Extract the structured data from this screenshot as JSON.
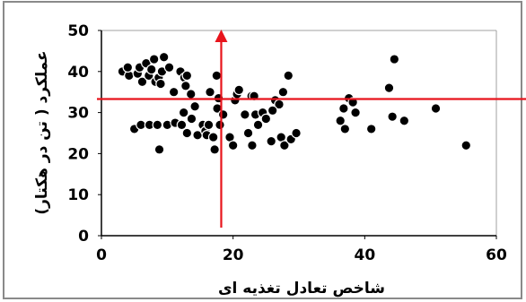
{
  "chart_data": {
    "type": "scatter",
    "xlabel": "شاخص تعادل تغذیه ای",
    "ylabel": "عملکرد ( تن در هکتار)",
    "xlim": [
      0,
      60
    ],
    "ylim": [
      0,
      50
    ],
    "xticks": [
      0,
      20,
      40,
      60
    ],
    "yticks": [
      0,
      10,
      20,
      30,
      40,
      50
    ],
    "grid": false,
    "point_color": "#000000",
    "reference_line_color": "#e8141c",
    "reference_lines": {
      "x": 18.2,
      "y": 33.3
    },
    "points": [
      [
        3.2,
        40.0
      ],
      [
        4.2,
        39.0
      ],
      [
        4.0,
        41.0
      ],
      [
        5.5,
        39.5
      ],
      [
        5.8,
        41.0
      ],
      [
        6.2,
        37.5
      ],
      [
        6.8,
        42.0
      ],
      [
        7.2,
        39.0
      ],
      [
        7.6,
        40.5
      ],
      [
        8.0,
        43.0
      ],
      [
        8.2,
        37.5
      ],
      [
        8.7,
        38.5
      ],
      [
        9.2,
        40.0
      ],
      [
        9.5,
        43.5
      ],
      [
        9.0,
        37.0
      ],
      [
        10.3,
        41.0
      ],
      [
        12.0,
        40.0
      ],
      [
        12.6,
        38.5
      ],
      [
        13.0,
        39.0
      ],
      [
        12.8,
        36.5
      ],
      [
        13.6,
        34.5
      ],
      [
        11.0,
        35.0
      ],
      [
        17.5,
        39.0
      ],
      [
        16.5,
        35.0
      ],
      [
        17.8,
        33.5
      ],
      [
        5.0,
        26.0
      ],
      [
        6.0,
        27.0
      ],
      [
        7.3,
        27.0
      ],
      [
        8.5,
        27.0
      ],
      [
        8.8,
        21.0
      ],
      [
        10.0,
        27.0
      ],
      [
        11.2,
        27.5
      ],
      [
        12.2,
        27.0
      ],
      [
        13.0,
        25.0
      ],
      [
        12.5,
        30.0
      ],
      [
        13.7,
        28.5
      ],
      [
        14.2,
        31.5
      ],
      [
        14.6,
        24.5
      ],
      [
        15.4,
        27.0
      ],
      [
        15.8,
        25.5
      ],
      [
        16.3,
        27.0
      ],
      [
        16.0,
        24.5
      ],
      [
        17.0,
        24.0
      ],
      [
        17.2,
        21.0
      ],
      [
        18.0,
        27.0
      ],
      [
        17.6,
        31.0
      ],
      [
        18.5,
        29.5
      ],
      [
        19.5,
        24.0
      ],
      [
        20.0,
        22.0
      ],
      [
        20.3,
        33.0
      ],
      [
        20.6,
        34.5
      ],
      [
        20.9,
        35.5
      ],
      [
        21.8,
        29.5
      ],
      [
        22.3,
        25.0
      ],
      [
        22.8,
        34.0
      ],
      [
        23.2,
        34.0
      ],
      [
        23.4,
        29.5
      ],
      [
        22.9,
        22.0
      ],
      [
        23.8,
        27.0
      ],
      [
        24.5,
        30.0
      ],
      [
        25.0,
        28.5
      ],
      [
        25.8,
        23.0
      ],
      [
        26.4,
        33.0
      ],
      [
        27.0,
        32.0
      ],
      [
        27.3,
        24.0
      ],
      [
        27.8,
        22.0
      ],
      [
        26.0,
        30.5
      ],
      [
        27.6,
        35.0
      ],
      [
        28.4,
        39.0
      ],
      [
        28.8,
        23.5
      ],
      [
        29.6,
        25.0
      ],
      [
        36.3,
        28.0
      ],
      [
        36.8,
        31.0
      ],
      [
        37.0,
        26.0
      ],
      [
        37.6,
        33.5
      ],
      [
        38.2,
        32.5
      ],
      [
        38.6,
        30.0
      ],
      [
        41.0,
        26.0
      ],
      [
        43.7,
        36.0
      ],
      [
        44.2,
        29.0
      ],
      [
        44.5,
        43.0
      ],
      [
        46.0,
        28.0
      ],
      [
        50.8,
        31.0
      ],
      [
        55.4,
        22.0
      ]
    ]
  }
}
